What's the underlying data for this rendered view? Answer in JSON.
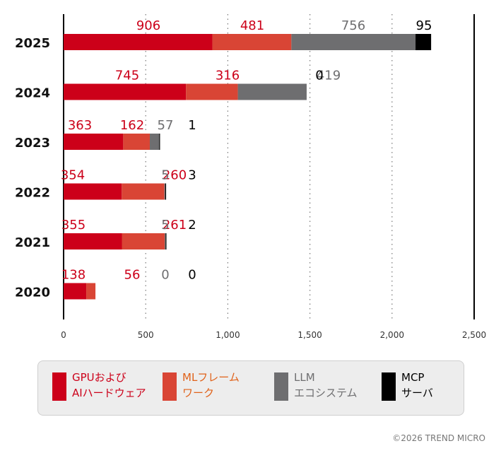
{
  "chart_data": {
    "type": "bar",
    "orientation": "horizontal",
    "stacked": true,
    "categories": [
      "2025",
      "2024",
      "2023",
      "2022",
      "2021",
      "2020"
    ],
    "series": [
      {
        "name": "GPUおよび\nAIハードウェア",
        "color": "#cc0019",
        "values": [
          906,
          745,
          363,
          354,
          355,
          138
        ]
      },
      {
        "name": "MLフレーム\nワーク",
        "color": "#d94535",
        "values": [
          481,
          316,
          162,
          260,
          261,
          56
        ]
      },
      {
        "name": "LLM\nエコシステム",
        "color": "#6e6e70",
        "values": [
          756,
          419,
          57,
          5,
          5,
          0
        ]
      },
      {
        "name": "MCP\nサーバ",
        "color": "#000000",
        "values": [
          95,
          0,
          1,
          3,
          2,
          0
        ]
      }
    ],
    "label_colors": [
      "#cc0019",
      "#cc0019",
      "#6e6e70",
      "#000000"
    ],
    "xlim": [
      0,
      2500
    ],
    "xticks": [
      0,
      500,
      1000,
      1500,
      2000,
      2500
    ],
    "xtick_labels": [
      "0",
      "500",
      "1,000",
      "1,500",
      "2,000",
      "2,500"
    ],
    "grid": "dotted vertical",
    "legend_position": "bottom"
  },
  "legend": {
    "items": [
      {
        "line1": "GPUおよび",
        "line2": "AIハードウェア",
        "color": "#cc0019",
        "text_color": "#cc0019"
      },
      {
        "line1": "MLフレーム",
        "line2": "ワーク",
        "color": "#d94535",
        "text_color": "#e0621a"
      },
      {
        "line1": "LLM",
        "line2": "エコシステム",
        "color": "#6e6e70",
        "text_color": "#6e6e70"
      },
      {
        "line1": "MCP",
        "line2": "サーバ",
        "color": "#000000",
        "text_color": "#000000"
      }
    ]
  },
  "copyright": "©2026 TREND MICRO"
}
